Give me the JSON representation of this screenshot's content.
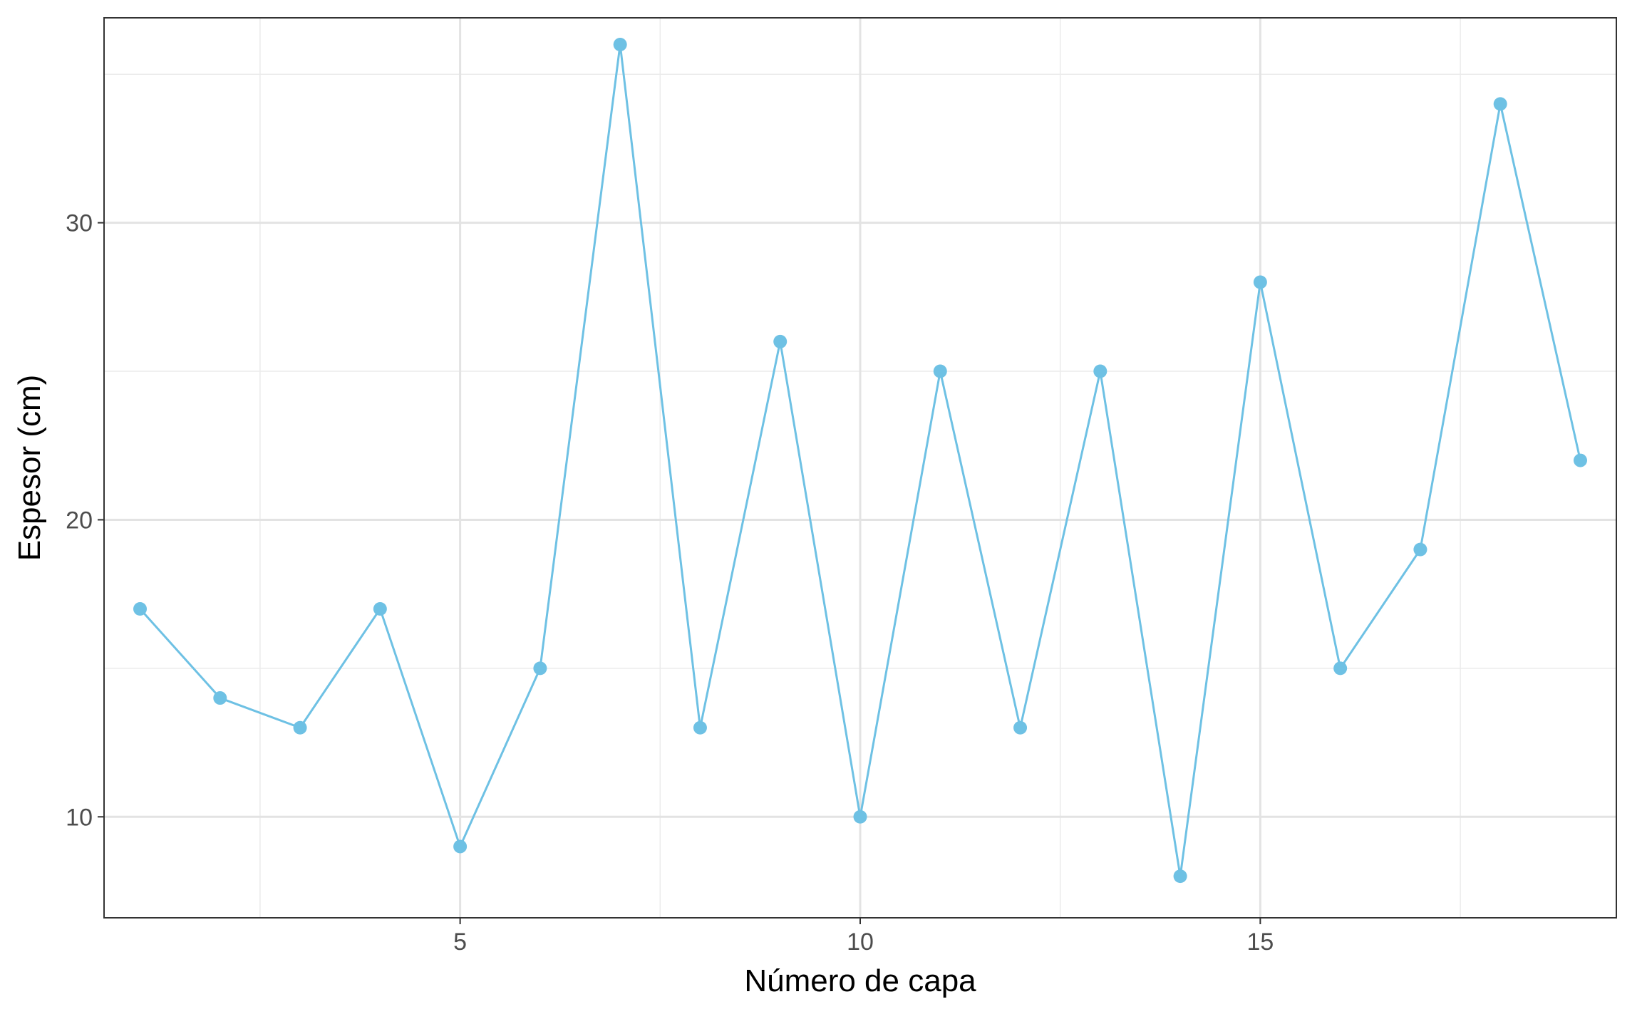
{
  "chart_data": {
    "type": "line",
    "title": "",
    "xlabel": "Número de capa",
    "ylabel": "Espesor (cm)",
    "xlim": [
      0.55,
      19.45
    ],
    "ylim": [
      6.6,
      36.9
    ],
    "x_ticks": [
      5,
      10,
      15
    ],
    "x_tick_labels": [
      "5",
      "10",
      "15"
    ],
    "y_ticks": [
      10,
      20,
      30
    ],
    "y_tick_labels": [
      "10",
      "20",
      "30"
    ],
    "grid": true,
    "legend": "none",
    "series": [
      {
        "color": "#6ec1e4",
        "x": [
          1,
          2,
          3,
          4,
          5,
          6,
          7,
          8,
          9,
          10,
          11,
          12,
          13,
          14,
          15,
          16,
          17,
          18,
          19
        ],
        "values": [
          17,
          14,
          13,
          17,
          9,
          15,
          36,
          13,
          26,
          10,
          25,
          13,
          25,
          8,
          28,
          15,
          19,
          34,
          22
        ]
      }
    ]
  }
}
